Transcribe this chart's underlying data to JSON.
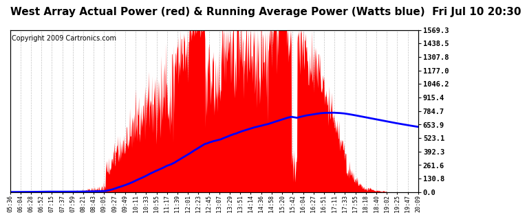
{
  "title": "West Array Actual Power (red) & Running Average Power (Watts blue)  Fri Jul 10 20:30",
  "copyright": "Copyright 2009 Cartronics.com",
  "ylabel_right_values": [
    0.0,
    130.8,
    261.6,
    392.3,
    523.1,
    653.9,
    784.7,
    915.4,
    1046.2,
    1177.0,
    1307.8,
    1438.5,
    1569.3
  ],
  "ymax": 1569.3,
  "ymin": 0.0,
  "bg_color": "#ffffff",
  "grid_color": "#aaaaaa",
  "red_fill_color": "red",
  "blue_line_color": "blue",
  "title_fontsize": 11,
  "copyright_fontsize": 7,
  "x_tick_labels": [
    "05:36",
    "06:04",
    "06:28",
    "06:52",
    "07:15",
    "07:37",
    "07:59",
    "08:21",
    "08:43",
    "09:05",
    "09:27",
    "09:49",
    "10:11",
    "10:33",
    "10:55",
    "11:17",
    "11:39",
    "12:01",
    "12:23",
    "12:45",
    "13:07",
    "13:29",
    "13:51",
    "14:14",
    "14:36",
    "14:58",
    "15:20",
    "15:42",
    "16:04",
    "16:27",
    "16:51",
    "17:11",
    "17:33",
    "17:55",
    "18:18",
    "18:40",
    "19:02",
    "19:25",
    "19:47",
    "20:09"
  ]
}
